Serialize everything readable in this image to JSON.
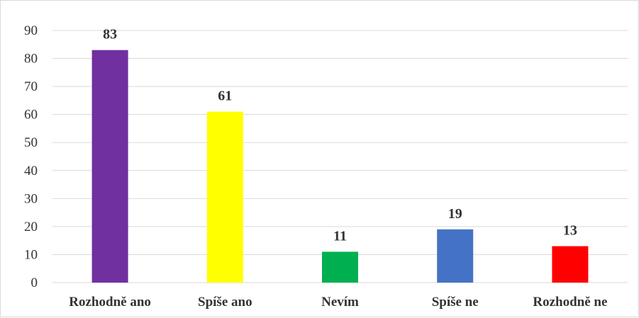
{
  "chart_data": {
    "type": "bar",
    "title": "",
    "xlabel": "",
    "ylabel": "",
    "categories": [
      "Rozhodně ano",
      "Spíše ano",
      "Nevím",
      "Spíše ne",
      "Rozhodně ne"
    ],
    "values": [
      83,
      61,
      11,
      19,
      13
    ],
    "colors": [
      "#7030a0",
      "#ffff00",
      "#00b050",
      "#4472c4",
      "#ff0000"
    ],
    "ylim": [
      0,
      90
    ],
    "yticks": [
      0,
      10,
      20,
      30,
      40,
      50,
      60,
      70,
      80,
      90
    ],
    "grid": true,
    "legend": "none",
    "data_labels": true
  }
}
